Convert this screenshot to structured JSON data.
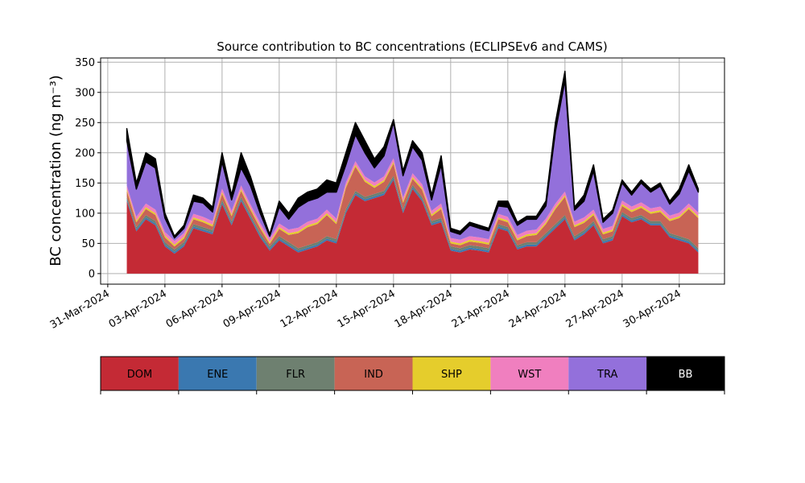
{
  "chart_data": {
    "type": "stacked_area",
    "title": "Source contribution to BC concentrations (ECLIPSEv6 and CAMS)",
    "y_label": "BC concentration (ng m⁻³)",
    "x": [
      "2024-04-01T00:00",
      "2024-04-01T12:00",
      "2024-04-02T00:00",
      "2024-04-02T12:00",
      "2024-04-03T00:00",
      "2024-04-03T12:00",
      "2024-04-04T00:00",
      "2024-04-04T12:00",
      "2024-04-05T00:00",
      "2024-04-05T12:00",
      "2024-04-06T00:00",
      "2024-04-06T12:00",
      "2024-04-07T00:00",
      "2024-04-07T12:00",
      "2024-04-08T00:00",
      "2024-04-08T12:00",
      "2024-04-09T00:00",
      "2024-04-09T12:00",
      "2024-04-10T00:00",
      "2024-04-10T12:00",
      "2024-04-11T00:00",
      "2024-04-11T12:00",
      "2024-04-12T00:00",
      "2024-04-12T12:00",
      "2024-04-13T00:00",
      "2024-04-13T12:00",
      "2024-04-14T00:00",
      "2024-04-14T12:00",
      "2024-04-15T00:00",
      "2024-04-15T12:00",
      "2024-04-16T00:00",
      "2024-04-16T12:00",
      "2024-04-17T00:00",
      "2024-04-17T12:00",
      "2024-04-18T00:00",
      "2024-04-18T12:00",
      "2024-04-19T00:00",
      "2024-04-19T12:00",
      "2024-04-20T00:00",
      "2024-04-20T12:00",
      "2024-04-21T00:00",
      "2024-04-21T12:00",
      "2024-04-22T00:00",
      "2024-04-22T12:00",
      "2024-04-23T00:00",
      "2024-04-23T12:00",
      "2024-04-24T00:00",
      "2024-04-24T12:00",
      "2024-04-25T00:00",
      "2024-04-25T12:00",
      "2024-04-26T00:00",
      "2024-04-26T12:00",
      "2024-04-27T00:00",
      "2024-04-27T12:00",
      "2024-04-28T00:00",
      "2024-04-28T12:00",
      "2024-04-29T00:00",
      "2024-04-29T12:00",
      "2024-04-30T00:00",
      "2024-04-30T12:00",
      "2024-05-01T00:00"
    ],
    "series": [
      {
        "name": "DOM",
        "color": "#c42a35",
        "values": [
          120,
          70,
          90,
          80,
          45,
          33,
          45,
          75,
          70,
          65,
          115,
          80,
          120,
          90,
          60,
          38,
          55,
          45,
          35,
          40,
          45,
          55,
          50,
          100,
          130,
          120,
          125,
          130,
          155,
          100,
          140,
          120,
          80,
          85,
          38,
          35,
          40,
          38,
          35,
          75,
          70,
          40,
          45,
          45,
          60,
          75,
          90,
          55,
          65,
          80,
          50,
          55,
          95,
          85,
          90,
          80,
          80,
          60,
          55,
          50,
          35
        ]
      },
      {
        "name": "ENE",
        "color": "#3a78b0",
        "values": [
          3,
          3,
          3,
          3,
          3,
          3,
          3,
          3,
          3,
          3,
          3,
          3,
          3,
          3,
          3,
          3,
          3,
          3,
          3,
          3,
          3,
          3,
          3,
          3,
          3,
          3,
          3,
          3,
          3,
          3,
          3,
          3,
          3,
          3,
          3,
          3,
          3,
          3,
          3,
          3,
          3,
          3,
          3,
          3,
          3,
          3,
          3,
          3,
          3,
          3,
          3,
          3,
          3,
          3,
          3,
          3,
          3,
          3,
          3,
          3,
          3
        ]
      },
      {
        "name": "FLR",
        "color": "#6e8070",
        "values": [
          4,
          4,
          4,
          4,
          4,
          4,
          4,
          4,
          4,
          4,
          4,
          4,
          4,
          4,
          4,
          4,
          4,
          4,
          4,
          4,
          4,
          4,
          4,
          4,
          4,
          4,
          4,
          4,
          4,
          4,
          4,
          4,
          4,
          4,
          4,
          4,
          4,
          4,
          4,
          4,
          4,
          4,
          4,
          4,
          4,
          4,
          4,
          4,
          4,
          4,
          4,
          4,
          4,
          4,
          4,
          4,
          4,
          4,
          4,
          4,
          4
        ]
      },
      {
        "name": "IND",
        "color": "#c86455",
        "values": [
          10,
          8,
          10,
          10,
          8,
          5,
          6,
          8,
          8,
          6,
          10,
          8,
          10,
          8,
          8,
          4,
          12,
          12,
          25,
          30,
          30,
          35,
          25,
          35,
          40,
          25,
          10,
          15,
          20,
          10,
          10,
          12,
          8,
          15,
          5,
          5,
          6,
          6,
          6,
          8,
          8,
          8,
          10,
          12,
          15,
          25,
          30,
          15,
          12,
          10,
          8,
          8,
          10,
          10,
          12,
          12,
          15,
          20,
          30,
          50,
          50
        ]
      },
      {
        "name": "SHP",
        "color": "#e5cd2c",
        "values": [
          3,
          3,
          3,
          3,
          3,
          3,
          3,
          3,
          3,
          3,
          3,
          3,
          3,
          3,
          3,
          3,
          3,
          3,
          3,
          3,
          3,
          3,
          3,
          3,
          3,
          3,
          3,
          3,
          3,
          3,
          3,
          3,
          3,
          3,
          3,
          3,
          3,
          3,
          3,
          3,
          3,
          3,
          3,
          3,
          3,
          3,
          3,
          3,
          3,
          3,
          3,
          3,
          3,
          3,
          3,
          3,
          3,
          3,
          3,
          3,
          3
        ]
      },
      {
        "name": "WST",
        "color": "#f07fbf",
        "values": [
          6,
          6,
          6,
          6,
          6,
          6,
          6,
          6,
          6,
          6,
          6,
          6,
          6,
          6,
          6,
          6,
          6,
          6,
          6,
          6,
          6,
          6,
          6,
          6,
          6,
          6,
          6,
          6,
          6,
          6,
          6,
          6,
          6,
          6,
          6,
          6,
          6,
          6,
          6,
          6,
          6,
          6,
          6,
          6,
          6,
          6,
          6,
          6,
          6,
          6,
          6,
          6,
          6,
          6,
          6,
          6,
          6,
          6,
          6,
          6,
          6
        ]
      },
      {
        "name": "TRA",
        "color": "#9370db",
        "values": [
          74,
          46,
          69,
          69,
          23,
          5,
          8,
          21,
          23,
          15,
          44,
          18,
          29,
          31,
          16,
          4,
          27,
          17,
          34,
          34,
          34,
          29,
          44,
          29,
          44,
          39,
          24,
          34,
          59,
          36,
          44,
          40,
          18,
          64,
          11,
          9,
          18,
          15,
          14,
          13,
          16,
          16,
          19,
          17,
          21,
          119,
          184,
          19,
          27,
          64,
          11,
          21,
          29,
          19,
          32,
          27,
          34,
          19,
          31,
          54,
          34
        ]
      },
      {
        "name": "BB",
        "color": "#000000",
        "values": [
          20,
          10,
          15,
          15,
          8,
          3,
          5,
          10,
          8,
          8,
          15,
          8,
          25,
          15,
          10,
          3,
          10,
          10,
          15,
          15,
          15,
          20,
          15,
          20,
          20,
          20,
          15,
          15,
          5,
          8,
          10,
          12,
          8,
          15,
          5,
          5,
          5,
          5,
          4,
          8,
          10,
          5,
          5,
          5,
          8,
          15,
          15,
          5,
          10,
          10,
          5,
          5,
          5,
          5,
          5,
          5,
          5,
          5,
          8,
          10,
          5
        ]
      }
    ],
    "xlim": [
      "2024-03-30T15:00",
      "2024-05-02T09:00"
    ],
    "xticks": [
      {
        "value": "2024-03-31T00:00",
        "label": "31-Mar-2024"
      },
      {
        "value": "2024-04-03T00:00",
        "label": "03-Apr-2024"
      },
      {
        "value": "2024-04-06T00:00",
        "label": "06-Apr-2024"
      },
      {
        "value": "2024-04-09T00:00",
        "label": "09-Apr-2024"
      },
      {
        "value": "2024-04-12T00:00",
        "label": "12-Apr-2024"
      },
      {
        "value": "2024-04-15T00:00",
        "label": "15-Apr-2024"
      },
      {
        "value": "2024-04-18T00:00",
        "label": "18-Apr-2024"
      },
      {
        "value": "2024-04-21T00:00",
        "label": "21-Apr-2024"
      },
      {
        "value": "2024-04-24T00:00",
        "label": "24-Apr-2024"
      },
      {
        "value": "2024-04-27T00:00",
        "label": "27-Apr-2024"
      },
      {
        "value": "2024-04-30T00:00",
        "label": "30-Apr-2024"
      }
    ],
    "ylim": [
      -17.5,
      357
    ],
    "yticks": [
      0,
      50,
      100,
      150,
      200,
      250,
      300,
      350
    ],
    "grid": true,
    "legend": "bottom"
  }
}
